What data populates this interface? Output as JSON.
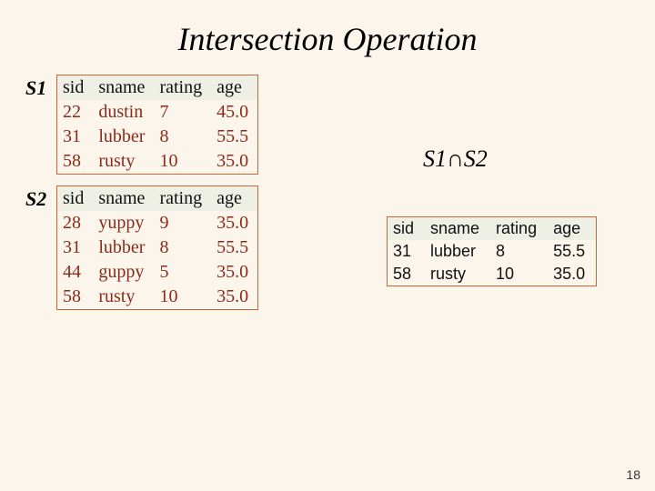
{
  "title": "Intersection Operation",
  "page_number": "18",
  "formula": {
    "left": "S1",
    "right": "S2",
    "op": "∩"
  },
  "labels": {
    "s1": "S1",
    "s2": "S2"
  },
  "columns": [
    "sid",
    "sname",
    "rating",
    "age"
  ],
  "s1": {
    "rows": [
      [
        "22",
        "dustin",
        "7",
        "45.0"
      ],
      [
        "31",
        "lubber",
        "8",
        "55.5"
      ],
      [
        "58",
        "rusty",
        "10",
        "35.0"
      ]
    ]
  },
  "s2": {
    "rows": [
      [
        "28",
        "yuppy",
        "9",
        "35.0"
      ],
      [
        "31",
        "lubber",
        "8",
        "55.5"
      ],
      [
        "44",
        "guppy",
        "5",
        "35.0"
      ],
      [
        "58",
        "rusty",
        "10",
        "35.0"
      ]
    ]
  },
  "result": {
    "rows": [
      [
        "31",
        "lubber",
        "8",
        "55.5"
      ],
      [
        "58",
        "rusty",
        "10",
        "35.0"
      ]
    ]
  },
  "style": {
    "background": "#fcf5eb",
    "table_border": "#cc6633",
    "header_bg": "#eef0e6",
    "s_cell_color": "#8b2a1a",
    "title_fontsize": 36
  }
}
